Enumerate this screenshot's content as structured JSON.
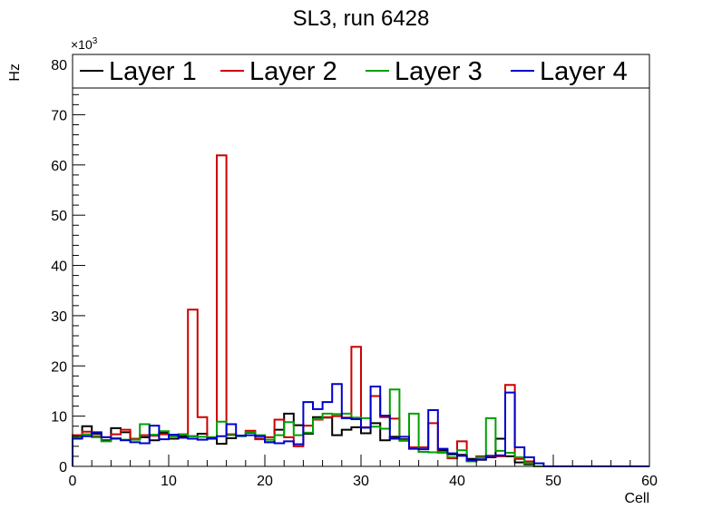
{
  "chart_data": {
    "type": "step-histogram",
    "title": "SL3, run 6428",
    "xlabel": "Cell",
    "ylabel": "Hz",
    "y_multiplier": "×10",
    "y_multiplier_exp": "3",
    "xlim": [
      0,
      60
    ],
    "ylim": [
      0,
      82000
    ],
    "x_ticks": [
      0,
      10,
      20,
      30,
      40,
      50,
      60
    ],
    "y_ticks": [
      0,
      10,
      20,
      30,
      40,
      50,
      60,
      70,
      80
    ],
    "grid": false,
    "legend_position": "top",
    "bin_edges_start": 0,
    "bin_width": 1,
    "series": [
      {
        "name": "Layer 1",
        "color": "#000000",
        "values": [
          6000,
          8000,
          6500,
          5200,
          7600,
          6800,
          5500,
          5800,
          5200,
          6700,
          5500,
          6000,
          6000,
          6500,
          5500,
          4500,
          5600,
          6100,
          6700,
          5500,
          4800,
          7300,
          10500,
          8200,
          6500,
          9800,
          9700,
          6200,
          7300,
          7800,
          6600,
          8600,
          5200,
          5900,
          5400,
          3600,
          2900,
          2800,
          3200,
          2400,
          2300,
          1500,
          1300,
          1800,
          5500,
          2000,
          800,
          400,
          0,
          0,
          0,
          0,
          0,
          0,
          0,
          0,
          0,
          0,
          0,
          0
        ]
      },
      {
        "name": "Layer 2",
        "color": "#cc0000",
        "values": [
          6200,
          6900,
          6000,
          5800,
          6400,
          7300,
          5500,
          6200,
          6100,
          6400,
          6000,
          6400,
          31200,
          9800,
          5800,
          61900,
          6400,
          6100,
          7100,
          5400,
          5800,
          9300,
          5800,
          4000,
          8100,
          9300,
          9800,
          10000,
          9700,
          23800,
          7800,
          14000,
          9800,
          9500,
          5100,
          3800,
          3800,
          8600,
          2800,
          1600,
          5000,
          1000,
          2000,
          2000,
          2000,
          16200,
          1500,
          1000,
          0,
          0,
          0,
          0,
          0,
          0,
          0,
          0,
          0,
          0,
          0,
          0
        ]
      },
      {
        "name": "Layer 3",
        "color": "#00a000",
        "values": [
          5800,
          6400,
          5800,
          5000,
          5600,
          5300,
          5300,
          8400,
          6300,
          7000,
          6000,
          6300,
          6000,
          5900,
          5800,
          8900,
          6200,
          6000,
          6800,
          6200,
          5300,
          6200,
          8800,
          6200,
          6700,
          9400,
          10500,
          10400,
          10500,
          9700,
          9600,
          7900,
          7500,
          15300,
          5200,
          10500,
          2900,
          2800,
          2700,
          1800,
          3200,
          1000,
          1800,
          9600,
          3100,
          2700,
          1800,
          600,
          0,
          0,
          0,
          0,
          0,
          0,
          0,
          0,
          0,
          0,
          0,
          0
        ]
      },
      {
        "name": "Layer 4",
        "color": "#0000cc",
        "values": [
          5500,
          6000,
          6800,
          5800,
          5500,
          5200,
          4800,
          4600,
          8100,
          5400,
          6300,
          5700,
          5500,
          5300,
          5600,
          6000,
          8400,
          6100,
          6200,
          6000,
          4800,
          4600,
          5000,
          4400,
          12800,
          11400,
          12800,
          16400,
          9600,
          9400,
          7700,
          15900,
          10100,
          5500,
          5900,
          3500,
          3400,
          11200,
          3500,
          2600,
          2100,
          1200,
          1400,
          2100,
          2200,
          14700,
          3800,
          1800,
          600,
          0,
          0,
          0,
          0,
          0,
          0,
          0,
          0,
          0,
          0,
          0
        ]
      }
    ]
  }
}
